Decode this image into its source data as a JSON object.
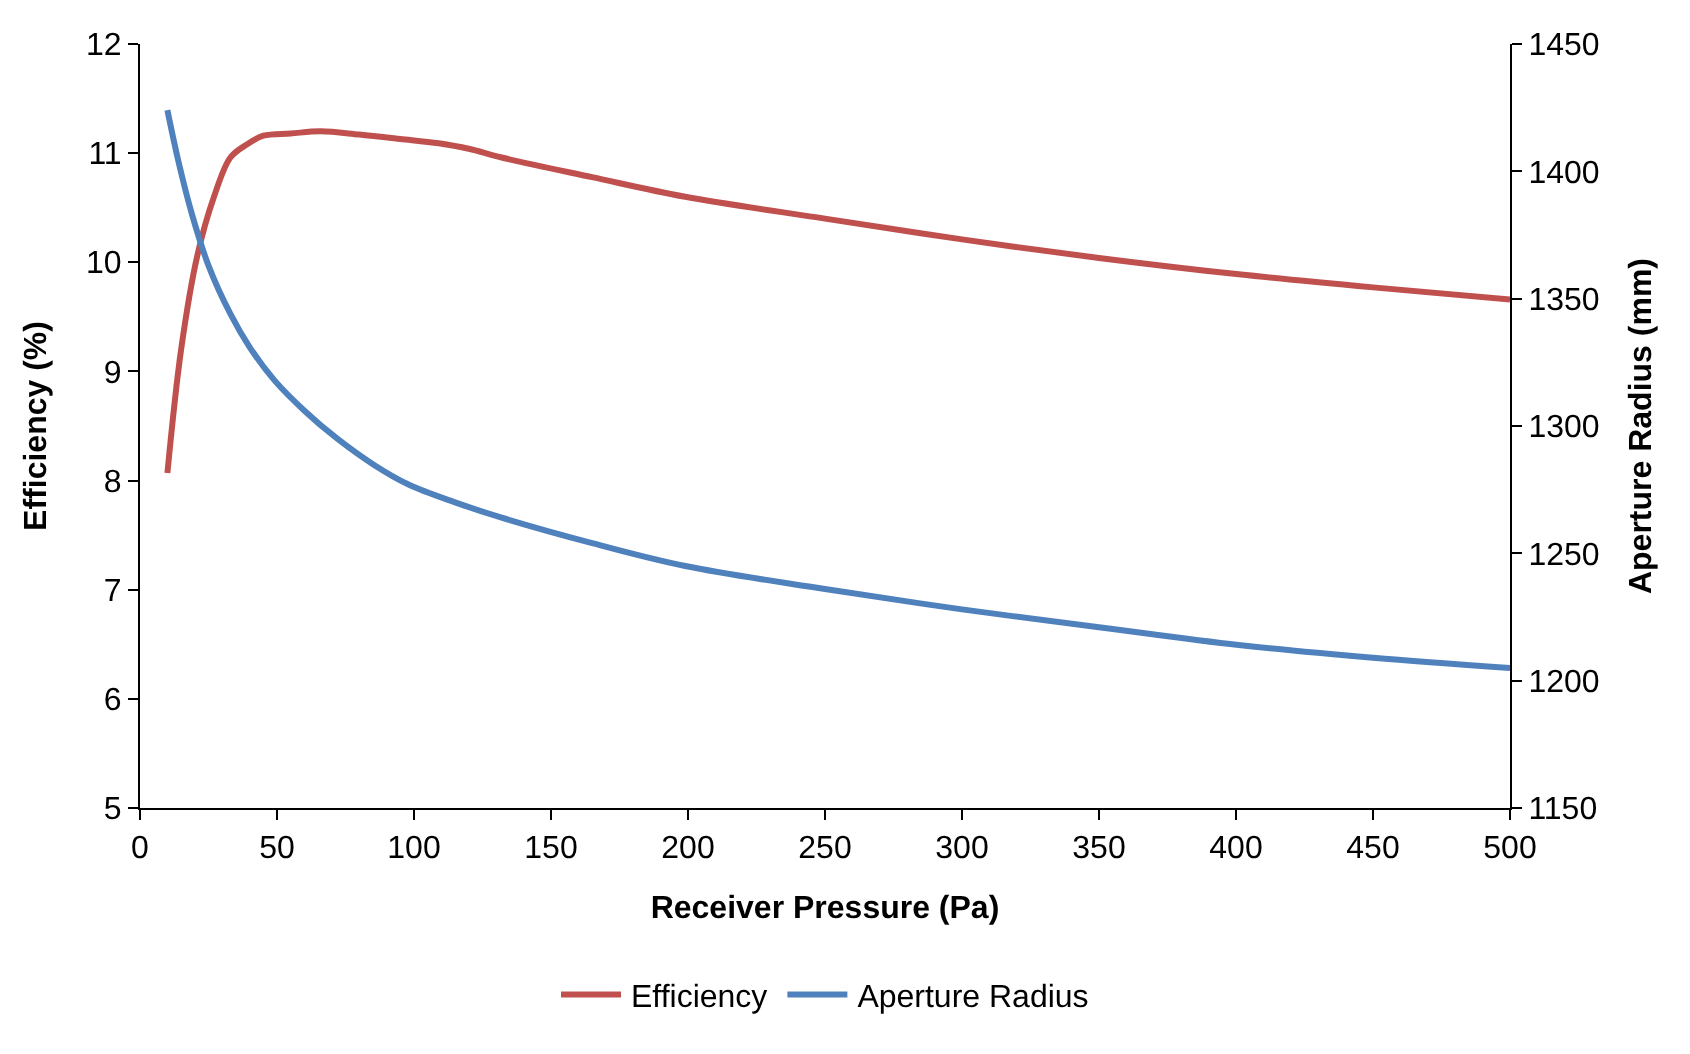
{
  "chart_data": {
    "type": "line",
    "xlabel": "Receiver Pressure (Pa)",
    "ylabel": "Efficiency (%)",
    "y2label": "Aperture Radius (mm)",
    "xlim": [
      0,
      500
    ],
    "xticks": [
      0,
      50,
      100,
      150,
      200,
      250,
      300,
      350,
      400,
      450,
      500
    ],
    "ylim": [
      5,
      12
    ],
    "yticks": [
      5,
      6,
      7,
      8,
      9,
      10,
      11,
      12
    ],
    "y2lim": [
      1150,
      1450
    ],
    "y2ticks": [
      1150,
      1200,
      1250,
      1300,
      1350,
      1400,
      1450
    ],
    "legend": "bottom",
    "marker": "none",
    "line_style": "solid",
    "series": [
      {
        "name": "Efficiency",
        "color": "#c0504d",
        "x": [
          10,
          15,
          21,
          27,
          33,
          39,
          45,
          55,
          66,
          80,
          95,
          109,
          120,
          132,
          165,
          199,
          250,
          300,
          350,
          401,
          450,
          500
        ],
        "values": [
          8.07,
          9.2,
          10.07,
          10.6,
          10.96,
          11.08,
          11.16,
          11.18,
          11.2,
          11.17,
          11.13,
          11.09,
          11.04,
          10.96,
          10.78,
          10.6,
          10.4,
          10.21,
          10.04,
          9.89,
          9.77,
          9.66
        ]
      },
      {
        "name": "Aperture Radius",
        "color": "#4f81bd",
        "axis": "y2",
        "x": [
          10,
          14,
          19,
          25,
          33,
          40,
          49,
          60,
          72,
          85,
          98,
          115,
          132,
          165,
          199,
          250,
          300,
          350,
          401,
          450,
          500
        ],
        "values": [
          1424,
          1404,
          1383,
          1363,
          1344,
          1331,
          1318,
          1306,
          1295,
          1285,
          1277,
          1270,
          1264,
          1254,
          1245,
          1236,
          1228,
          1221,
          1214,
          1209,
          1205
        ]
      }
    ]
  }
}
